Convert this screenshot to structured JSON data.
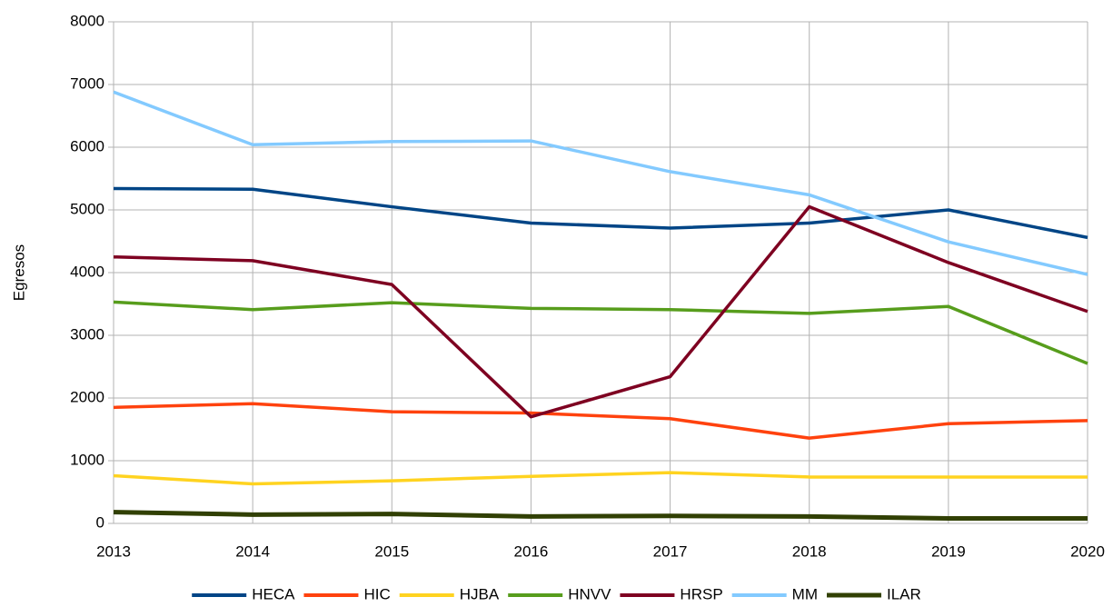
{
  "chart_data": {
    "type": "line",
    "y_label": "Egresos",
    "x": [
      2013,
      2014,
      2015,
      2016,
      2017,
      2018,
      2019,
      2020
    ],
    "xlim": [
      2013,
      2020
    ],
    "xticks": [
      2013,
      2014,
      2015,
      2016,
      2017,
      2018,
      2019,
      2020
    ],
    "ylim": [
      0,
      8000
    ],
    "yticks": [
      0,
      1000,
      2000,
      3000,
      4000,
      5000,
      6000,
      7000,
      8000
    ],
    "grid": true,
    "legend": "bottom",
    "series": [
      {
        "name": "HECA",
        "color": "#004586",
        "values": [
          5340,
          5330,
          5050,
          4790,
          4710,
          4790,
          5000,
          4560
        ]
      },
      {
        "name": "HIC",
        "color": "#ff420e",
        "values": [
          1850,
          1910,
          1780,
          1760,
          1670,
          1360,
          1590,
          1640
        ]
      },
      {
        "name": "HJBA",
        "color": "#ffd320",
        "values": [
          760,
          630,
          680,
          750,
          810,
          740,
          740,
          740
        ]
      },
      {
        "name": "HNVV",
        "color": "#579d1c",
        "values": [
          3530,
          3410,
          3520,
          3430,
          3410,
          3350,
          3460,
          2550
        ]
      },
      {
        "name": "HRSP",
        "color": "#7e0021",
        "values": [
          4250,
          4190,
          3810,
          1700,
          2340,
          5050,
          4160,
          3380
        ]
      },
      {
        "name": "MM",
        "color": "#83caff",
        "values": [
          6880,
          6040,
          6090,
          6100,
          5610,
          5240,
          4490,
          3970
        ]
      },
      {
        "name": "ILAR",
        "color": "#314004",
        "values": [
          180,
          140,
          150,
          110,
          120,
          110,
          80,
          80
        ]
      }
    ]
  }
}
